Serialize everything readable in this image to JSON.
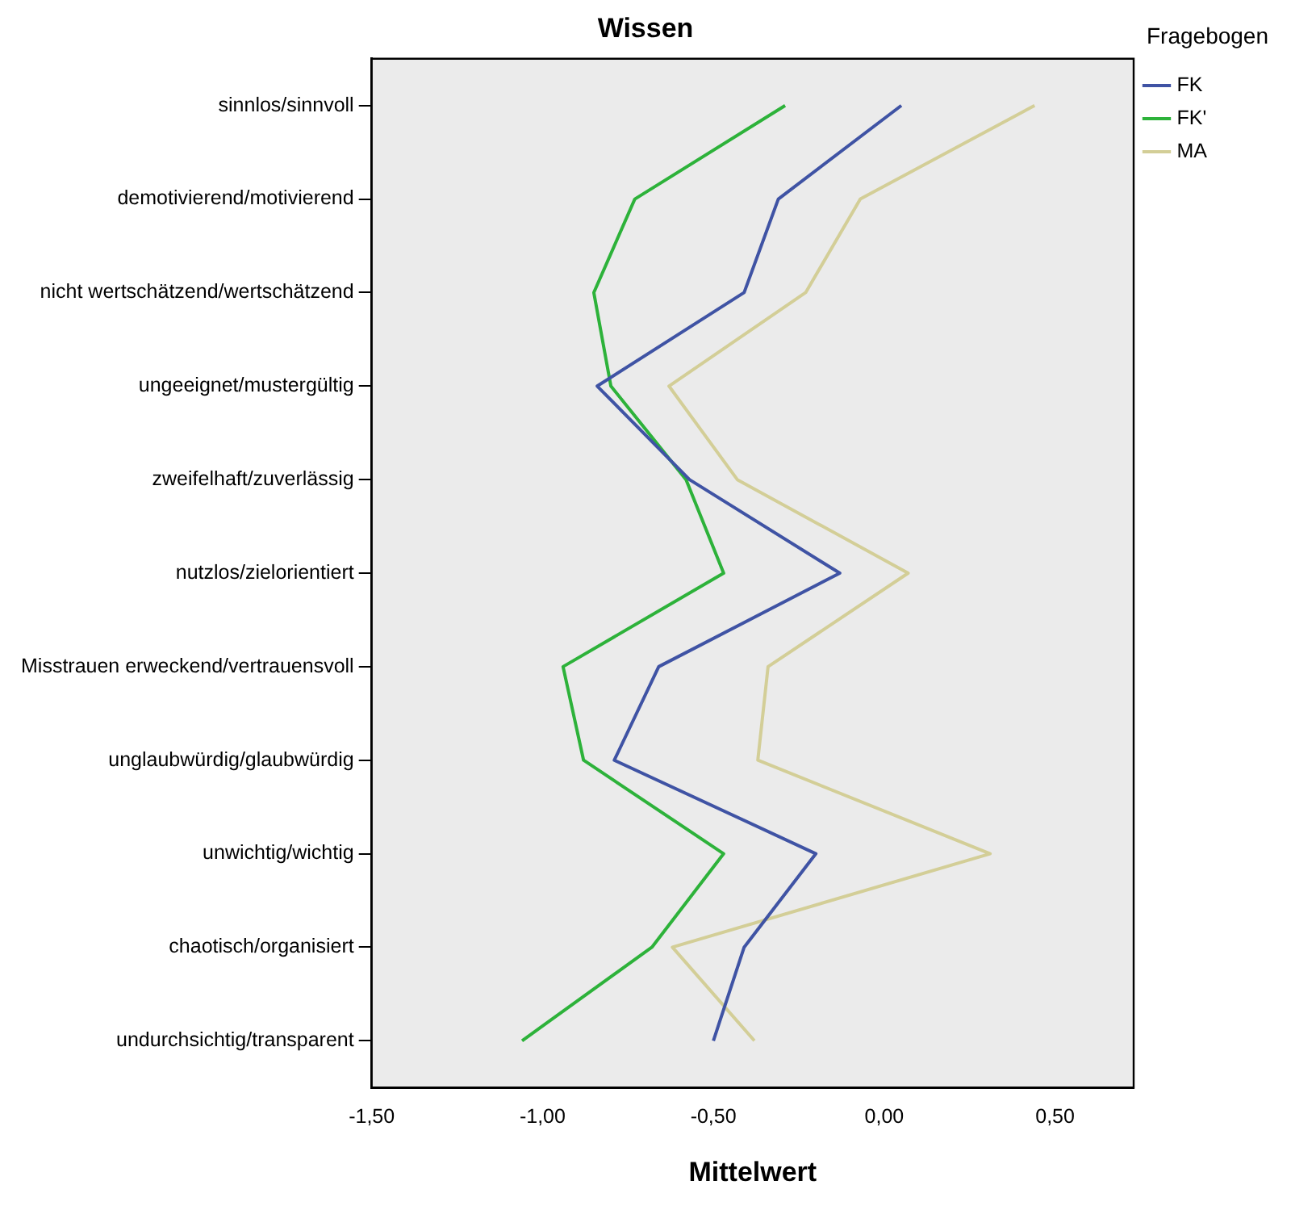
{
  "chart_data": {
    "type": "line",
    "orientation": "horizontal",
    "title": "Wissen",
    "xlabel": "Mittelwert",
    "legend_title": "Fragebogen",
    "legend": "top right",
    "grid": false,
    "marker": "none",
    "categories": [
      "sinnlos/sinnvoll",
      "demotivierend/motivierend",
      "nicht wertschätzend/wertschätzend",
      "ungeeignet/mustergültig",
      "zweifelhaft/zuverlässig",
      "nutzlos/zielorientiert",
      "Misstrauen erweckend/vertrauensvoll",
      "unglaubwürdig/glaubwürdig",
      "unwichtig/wichtig",
      "chaotisch/organisiert",
      "undurchsichtig/transparent"
    ],
    "xlim": [
      -1.5,
      0.73
    ],
    "xticks": [
      {
        "value": -1.5,
        "label": "-1,50"
      },
      {
        "value": -1,
        "label": "-1,00"
      },
      {
        "value": -0.5,
        "label": "-0,50"
      },
      {
        "value": 0,
        "label": "0,00"
      },
      {
        "value": 0.5,
        "label": "0,50"
      }
    ],
    "series": [
      {
        "name": "FK",
        "color": "#3f53a4",
        "values": [
          0.05,
          -0.31,
          -0.41,
          -0.84,
          -0.57,
          -0.13,
          -0.66,
          -0.79,
          -0.2,
          -0.41,
          -0.5
        ]
      },
      {
        "name": "FK'",
        "color": "#2db23a",
        "values": [
          -0.29,
          -0.73,
          -0.85,
          -0.8,
          -0.58,
          -0.47,
          -0.94,
          -0.88,
          -0.47,
          -0.68,
          -1.06
        ]
      },
      {
        "name": "MA",
        "color": "#d3ce97",
        "values": [
          0.44,
          -0.07,
          -0.23,
          -0.63,
          -0.43,
          0.07,
          -0.34,
          -0.37,
          0.31,
          -0.62,
          -0.38
        ]
      }
    ]
  }
}
